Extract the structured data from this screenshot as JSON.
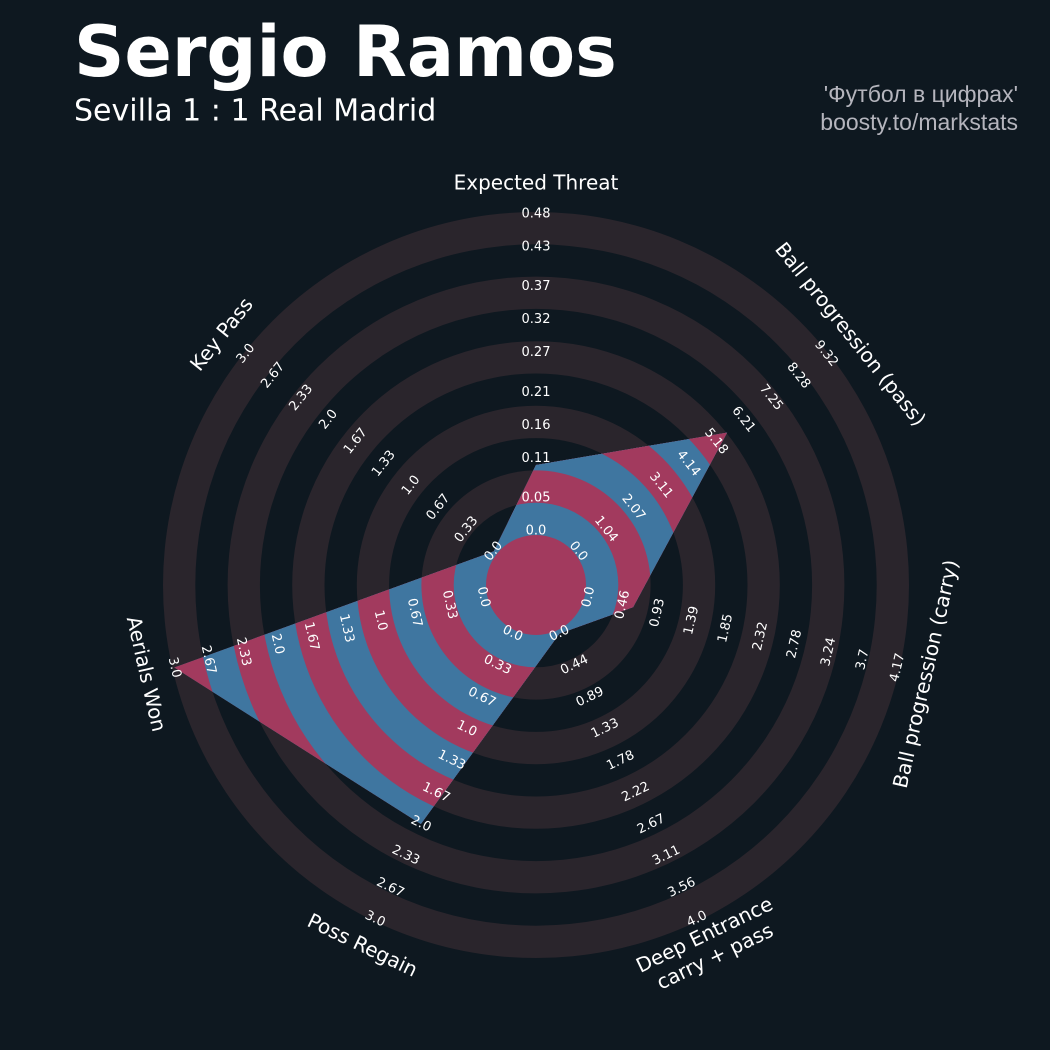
{
  "chart_data": {
    "type": "radar",
    "title": "Sergio Ramos",
    "subtitle": "Sevilla 1 : 1 Real Madrid",
    "credits": [
      "'Футбол в цифрах'",
      "boosty.to/markstats"
    ],
    "colors": {
      "background": "#0e1820",
      "ring": "#2a252c",
      "polygon": "#3f76a0",
      "polygon_ring": "#a23a5e"
    },
    "axes": [
      {
        "label": "Expected Threat",
        "lim": [
          0,
          0.48
        ],
        "ticks": [
          {
            "value": 0,
            "label": "0.0"
          },
          0.05,
          0.11,
          0.16,
          0.21,
          0.27,
          0.32,
          0.37,
          0.43,
          0.48
        ]
      },
      {
        "label": "Ball progression (pass)",
        "lim": [
          0,
          9.32
        ],
        "ticks": [
          {
            "value": 0,
            "label": "0.0"
          },
          1.04,
          2.07,
          3.11,
          4.14,
          5.18,
          6.21,
          7.25,
          8.28,
          9.32
        ]
      },
      {
        "label": "Ball progression (carry)",
        "lim": [
          0,
          4.17
        ],
        "ticks": [
          {
            "value": 0,
            "label": "0.0"
          },
          0.46,
          0.93,
          1.39,
          1.85,
          2.32,
          2.78,
          3.24,
          3.7,
          4.17
        ]
      },
      {
        "label": "Deep Entrance\ncarry + pass",
        "lim": [
          0,
          4
        ],
        "ticks": [
          {
            "value": 0,
            "label": "0.0"
          },
          0.44,
          0.89,
          1.33,
          1.78,
          2.22,
          2.67,
          3.11,
          3.56,
          {
            "value": 4,
            "label": "4.0"
          }
        ]
      },
      {
        "label": "Poss Regain",
        "lim": [
          0,
          3
        ],
        "ticks": [
          {
            "value": 0,
            "label": "0.0"
          },
          0.33,
          0.67,
          {
            "value": 1,
            "label": "1.0"
          },
          1.33,
          1.67,
          {
            "value": 2,
            "label": "2.0"
          },
          2.33,
          2.67,
          {
            "value": 3,
            "label": "3.0"
          }
        ]
      },
      {
        "label": "Aerials Won",
        "lim": [
          0,
          3
        ],
        "ticks": [
          {
            "value": 0,
            "label": "0.0"
          },
          0.33,
          0.67,
          {
            "value": 1,
            "label": "1.0"
          },
          1.33,
          1.67,
          {
            "value": 2,
            "label": "2.0"
          },
          2.33,
          2.67,
          {
            "value": 3,
            "label": "3.0"
          }
        ]
      },
      {
        "label": "Key Pass",
        "lim": [
          0,
          3
        ],
        "ticks": [
          {
            "value": 0,
            "label": "0.0"
          },
          0.33,
          0.67,
          {
            "value": 1,
            "label": "1.0"
          },
          1.33,
          1.67,
          {
            "value": 2,
            "label": "2.0"
          },
          2.33,
          2.67,
          {
            "value": 3,
            "label": "3.0"
          }
        ]
      }
    ],
    "values": [
      0.1,
      5.6,
      0.6,
      0,
      2,
      3,
      0
    ]
  }
}
